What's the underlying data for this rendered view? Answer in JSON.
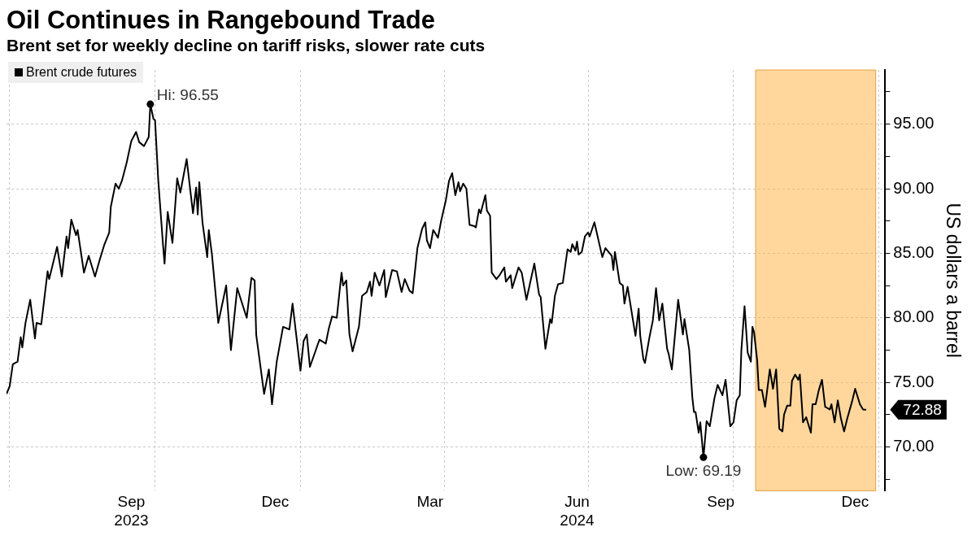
{
  "chart_data": {
    "type": "line",
    "title": "Oil Continues in Rangebound Trade",
    "subtitle": "Brent set for weekly decline on tariff risks, slower rate cuts",
    "ylabel": "US dollars a barrel",
    "x": [
      "2023-06-29",
      "2023-07-01",
      "2023-07-03",
      "2023-07-06",
      "2023-07-08",
      "2023-07-09",
      "2023-07-11",
      "2023-07-14",
      "2023-07-17",
      "2023-07-18",
      "2023-07-21",
      "2023-07-25",
      "2023-07-26",
      "2023-07-29",
      "2023-07-31",
      "2023-08-03",
      "2023-08-06",
      "2023-08-07",
      "2023-08-09",
      "2023-08-12",
      "2023-08-13",
      "2023-08-17",
      "2023-08-20",
      "2023-08-24",
      "2023-08-27",
      "2023-08-30",
      "2023-09-02",
      "2023-09-03",
      "2023-09-06",
      "2023-09-08",
      "2023-09-10",
      "2023-09-13",
      "2023-09-16",
      "2023-09-19",
      "2023-09-21",
      "2023-09-24",
      "2023-09-27",
      "2023-09-28",
      "2023-09-30",
      "2023-10-01",
      "2023-10-03",
      "2023-10-06",
      "2023-10-07",
      "2023-10-09",
      "2023-10-12",
      "2023-10-15",
      "2023-10-17",
      "2023-10-21",
      "2023-10-25",
      "2023-10-27",
      "2023-10-28",
      "2023-10-29",
      "2023-10-31",
      "2023-11-03",
      "2023-11-04",
      "2023-11-06",
      "2023-11-10",
      "2023-11-15",
      "2023-11-18",
      "2023-11-22",
      "2023-11-28",
      "2023-12-01",
      "2023-12-03",
      "2023-12-04",
      "2023-12-09",
      "2023-12-12",
      "2023-12-14",
      "2023-12-17",
      "2023-12-21",
      "2023-12-25",
      "2023-12-27",
      "2024-01-01",
      "2024-01-03",
      "2024-01-05",
      "2024-01-07",
      "2024-01-13",
      "2024-01-17",
      "2024-01-19",
      "2024-01-21",
      "2024-01-24",
      "2024-01-27",
      "2024-01-28",
      "2024-01-30",
      "2024-02-01",
      "2024-02-03",
      "2024-02-07",
      "2024-02-09",
      "2024-02-12",
      "2024-02-14",
      "2024-02-15",
      "2024-02-17",
      "2024-02-20",
      "2024-02-23",
      "2024-02-24",
      "2024-02-28",
      "2024-03-02",
      "2024-03-05",
      "2024-03-07",
      "2024-03-10",
      "2024-03-12",
      "2024-03-15",
      "2024-03-18",
      "2024-03-20",
      "2024-03-21",
      "2024-03-23",
      "2024-03-25",
      "2024-03-28",
      "2024-03-30",
      "2024-04-02",
      "2024-04-04",
      "2024-04-06",
      "2024-04-08",
      "2024-04-10",
      "2024-04-11",
      "2024-04-13",
      "2024-04-15",
      "2024-04-17",
      "2024-04-20",
      "2024-04-21",
      "2024-04-23",
      "2024-04-24",
      "2024-04-27",
      "2024-04-28",
      "2024-04-30",
      "2024-05-01",
      "2024-05-04",
      "2024-05-06",
      "2024-05-09",
      "2024-05-10",
      "2024-05-13",
      "2024-05-14",
      "2024-05-18",
      "2024-05-20",
      "2024-05-23",
      "2024-05-28",
      "2024-05-31",
      "2024-06-01",
      "2024-06-04",
      "2024-06-07",
      "2024-06-08",
      "2024-06-10",
      "2024-06-12",
      "2024-06-15",
      "2024-06-18",
      "2024-06-20",
      "2024-06-21",
      "2024-06-23",
      "2024-06-24",
      "2024-06-25",
      "2024-06-27",
      "2024-06-29",
      "2024-07-01",
      "2024-07-02",
      "2024-07-05",
      "2024-07-10",
      "2024-07-12",
      "2024-07-16",
      "2024-07-17",
      "2024-07-18",
      "2024-07-21",
      "2024-07-23",
      "2024-07-24",
      "2024-07-26",
      "2024-07-31",
      "2024-08-02",
      "2024-08-03",
      "2024-08-05",
      "2024-08-06",
      "2024-08-09",
      "2024-08-11",
      "2024-08-13",
      "2024-08-15",
      "2024-08-17",
      "2024-08-20",
      "2024-08-21",
      "2024-08-23",
      "2024-08-27",
      "2024-08-30",
      "2024-08-31",
      "2024-09-03",
      "2024-09-05",
      "2024-09-06",
      "2024-09-07",
      "2024-09-09",
      "2024-09-10",
      "2024-09-12",
      "2024-09-14",
      "2024-09-16",
      "2024-09-19",
      "2024-09-21",
      "2024-09-24",
      "2024-09-26",
      "2024-09-29",
      "2024-10-01",
      "2024-10-03",
      "2024-10-05",
      "2024-10-06",
      "2024-10-08",
      "2024-10-10",
      "2024-10-12",
      "2024-10-13",
      "2024-10-14",
      "2024-10-16",
      "2024-10-17",
      "2024-10-19",
      "2024-10-21",
      "2024-10-24",
      "2024-10-26",
      "2024-10-28",
      "2024-10-30",
      "2024-11-01",
      "2024-11-02",
      "2024-11-04",
      "2024-11-06",
      "2024-11-07",
      "2024-11-09",
      "2024-11-11",
      "2024-11-12",
      "2024-11-14",
      "2024-11-16",
      "2024-11-19",
      "2024-11-20",
      "2024-11-22",
      "2024-11-24",
      "2024-11-26",
      "2024-11-28",
      "2024-12-01",
      "2024-12-02",
      "2024-12-04",
      "2024-12-06",
      "2024-12-08",
      "2024-12-10",
      "2024-12-12",
      "2024-12-15",
      "2024-12-17",
      "2024-12-20",
      "2024-12-22",
      "2024-12-24"
    ],
    "series": [
      {
        "name": "Brent crude futures",
        "color": "#000000",
        "values": [
          74.1,
          74.7,
          76.4,
          76.6,
          78.5,
          77.7,
          79.6,
          81.4,
          78.4,
          79.6,
          79.5,
          83.6,
          83.0,
          84.5,
          85.5,
          83.2,
          86.3,
          85.4,
          87.6,
          86.4,
          86.8,
          83.5,
          84.8,
          83.2,
          84.5,
          85.7,
          86.6,
          88.6,
          90.4,
          90.0,
          90.6,
          92.0,
          93.7,
          94.4,
          93.6,
          93.3,
          94.0,
          96.55,
          95.4,
          95.3,
          90.7,
          85.7,
          84.2,
          88.2,
          85.8,
          90.8,
          89.7,
          92.3,
          88.1,
          90.1,
          88.0,
          90.5,
          87.4,
          84.7,
          86.8,
          84.9,
          79.6,
          82.5,
          77.5,
          82.3,
          80.0,
          83.1,
          82.9,
          78.7,
          74.1,
          76.0,
          73.3,
          76.6,
          79.3,
          79.1,
          81.1,
          75.9,
          78.2,
          78.7,
          76.2,
          78.3,
          78.0,
          79.2,
          80.1,
          80.0,
          83.5,
          82.5,
          82.9,
          78.7,
          77.4,
          79.3,
          81.7,
          82.0,
          82.8,
          81.7,
          83.5,
          82.5,
          83.7,
          81.6,
          83.7,
          83.6,
          82.0,
          83.0,
          82.1,
          81.9,
          85.4,
          86.9,
          87.4,
          86.0,
          85.4,
          86.8,
          86.2,
          87.5,
          89.1,
          90.6,
          91.2,
          89.5,
          90.5,
          89.8,
          90.4,
          90.0,
          87.2,
          87.1,
          87.0,
          88.4,
          88.1,
          89.5,
          88.3,
          87.9,
          83.5,
          83.0,
          83.3,
          83.9,
          82.8,
          83.3,
          82.3,
          83.9,
          83.5,
          81.4,
          84.2,
          81.8,
          81.6,
          77.6,
          79.9,
          79.6,
          81.7,
          82.6,
          82.7,
          85.3,
          85.1,
          85.7,
          85.2,
          85.9,
          84.9,
          85.1,
          86.3,
          86.6,
          86.3,
          87.4,
          84.7,
          85.4,
          84.8,
          83.7,
          85.1,
          82.7,
          82.5,
          81.1,
          82.4,
          78.6,
          80.7,
          78.6,
          76.8,
          76.5,
          78.6,
          79.8,
          82.3,
          79.8,
          81.1,
          77.6,
          77.2,
          76.0,
          81.4,
          78.7,
          79.9,
          77.5,
          73.8,
          72.7,
          72.7,
          71.1,
          71.9,
          69.19,
          72.0,
          71.6,
          73.8,
          74.8,
          74.0,
          75.2,
          71.6,
          71.9,
          73.6,
          74.0,
          77.5,
          80.9,
          77.3,
          76.6,
          79.3,
          78.9,
          76.7,
          74.4,
          74.4,
          73.1,
          76.0,
          74.5,
          76.0,
          71.4,
          71.2,
          72.5,
          73.2,
          73.2,
          75.1,
          75.6,
          75.2,
          75.6,
          71.9,
          72.3,
          71.1,
          73.3,
          73.3,
          74.4,
          75.2,
          73.1,
          72.9,
          73.3,
          71.9,
          73.6,
          72.2,
          71.2,
          72.2,
          73.5,
          74.5,
          73.3,
          72.9,
          72.88
        ]
      }
    ],
    "xlim": [
      "2023-06-29",
      "2025-01-05"
    ],
    "xticks": [
      {
        "value": "2023-07-01",
        "label": null
      },
      {
        "value": "2023-09-16",
        "label": "Sep\n2023"
      },
      {
        "value": "2023-10-01",
        "label": null
      },
      {
        "value": "2023-12-16",
        "label": "Dec"
      },
      {
        "value": "2024-01-01",
        "label": null
      },
      {
        "value": "2024-03-23",
        "label": "Mar"
      },
      {
        "value": "2024-04-01",
        "label": null
      },
      {
        "value": "2024-06-24",
        "label": "Jun\n2024"
      },
      {
        "value": "2024-07-01",
        "label": null
      },
      {
        "value": "2024-09-23",
        "label": "Sep"
      },
      {
        "value": "2024-10-01",
        "label": null
      },
      {
        "value": "2024-12-17",
        "label": "Dec"
      },
      {
        "value": "2025-01-01",
        "label": null
      }
    ],
    "ylim": [
      66.6,
      99.2
    ],
    "yticks": [
      {
        "value": 67.5,
        "label": null
      },
      {
        "value": 70,
        "label": "70.00"
      },
      {
        "value": 72.5,
        "label": null
      },
      {
        "value": 75,
        "label": "75.00"
      },
      {
        "value": 77.5,
        "label": null
      },
      {
        "value": 80,
        "label": "80.00"
      },
      {
        "value": 82.5,
        "label": null
      },
      {
        "value": 85,
        "label": "85.00"
      },
      {
        "value": 87.5,
        "label": null
      },
      {
        "value": 90,
        "label": "90.00"
      },
      {
        "value": 92.5,
        "label": null
      },
      {
        "value": 95,
        "label": "95.00"
      },
      {
        "value": 97.5,
        "label": null
      }
    ],
    "bands": [
      {
        "axis": "x",
        "from": "2024-10-15",
        "to": "2024-12-30",
        "color": "#ffb74d"
      }
    ],
    "annotations": [
      {
        "text": "Hi: 96.55",
        "x": "2023-09-28",
        "y": 96.55
      },
      {
        "text": "Low: 69.19",
        "x": "2024-09-12",
        "y": 69.19
      },
      {
        "text": "72.88",
        "x": "2024-12-24",
        "y": 72.88
      }
    ],
    "grid": true,
    "legend": "top left",
    "marker": "none",
    "line_style": "solid"
  }
}
